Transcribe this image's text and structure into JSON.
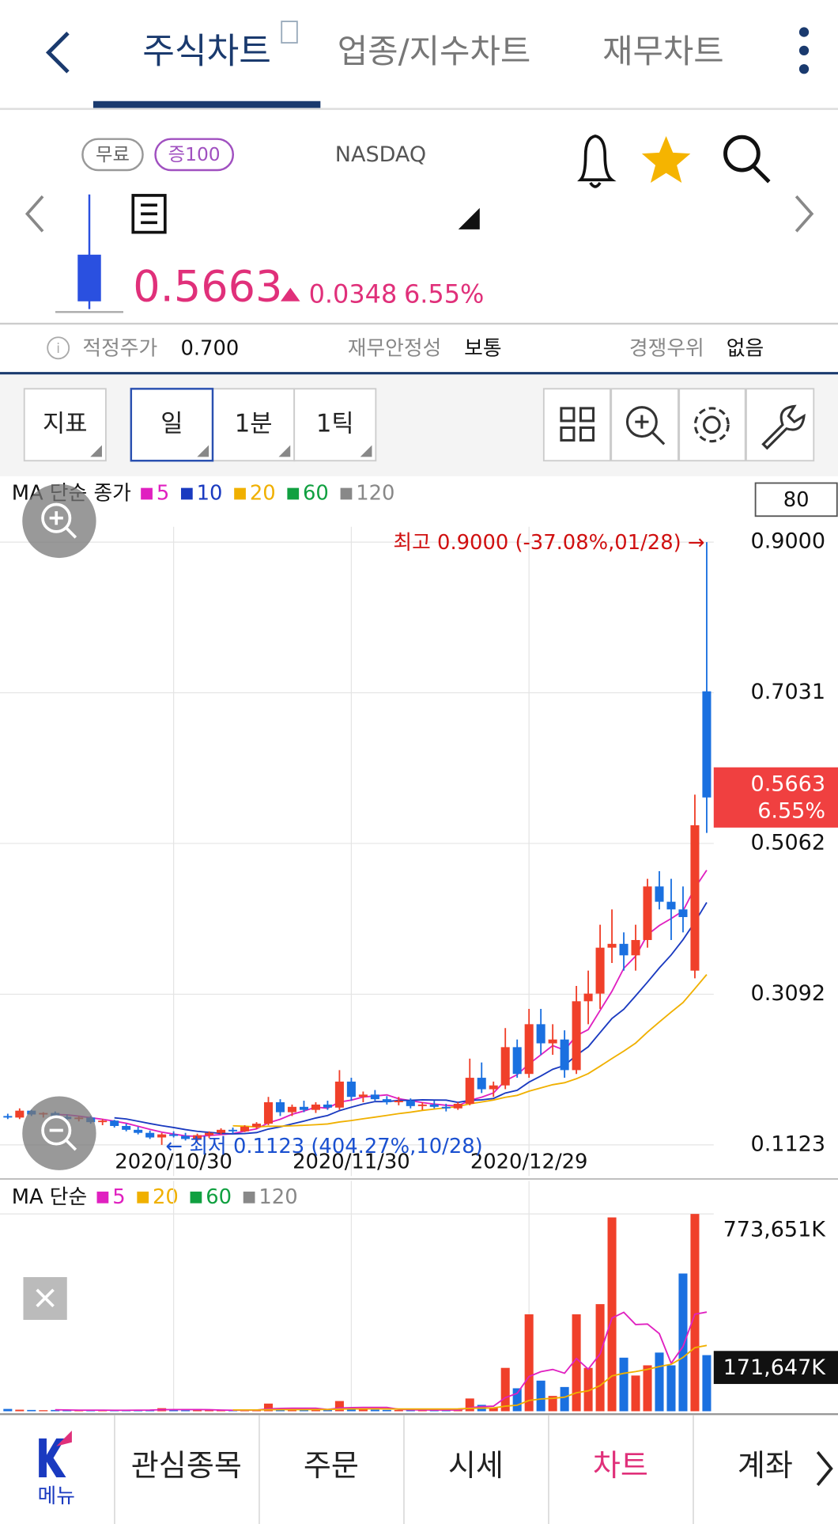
{
  "header": {
    "tabs": [
      "주식차트",
      "업종/지수차트",
      "재무차트"
    ]
  },
  "stock": {
    "badges": [
      "무료",
      "증100"
    ],
    "market": "NASDAQ",
    "price": "0.5663",
    "change": "0.0348",
    "change_pct": "6.55%"
  },
  "info": [
    {
      "label": "적정주가",
      "value": "0.700"
    },
    {
      "label": "재무안정성",
      "value": "보통"
    },
    {
      "label": "경쟁우위",
      "value": "없음"
    }
  ],
  "toolbar": [
    "지표",
    "일",
    "1분",
    "1틱"
  ],
  "chart_data": [
    {
      "type": "candlestick",
      "legend_title": "MA 단순 종가",
      "zoom_box": "80",
      "ma": [
        {
          "name": "5",
          "color": "#e020c0",
          "period": 5
        },
        {
          "name": "10",
          "color": "#1a3ac0",
          "period": 10
        },
        {
          "name": "20",
          "color": "#f0b000",
          "period": 20
        },
        {
          "name": "60",
          "color": "#10a040"
        },
        {
          "name": "120",
          "color": "#888888"
        }
      ],
      "categories": [
        null,
        null,
        null,
        null,
        null,
        null,
        null,
        null,
        null,
        null,
        null,
        null,
        null,
        null,
        "2020/10/30",
        null,
        null,
        null,
        null,
        null,
        null,
        null,
        null,
        null,
        null,
        null,
        null,
        null,
        null,
        "2020/11/30",
        null,
        null,
        null,
        null,
        null,
        null,
        null,
        null,
        null,
        null,
        null,
        null,
        null,
        null,
        "2020/12/29",
        null,
        null,
        null,
        null,
        null,
        null,
        null,
        null,
        null,
        null,
        null,
        null,
        null,
        null,
        null
      ],
      "open": [
        0.15,
        0.148,
        0.157,
        0.152,
        0.154,
        0.149,
        0.146,
        0.148,
        0.142,
        0.144,
        0.137,
        0.132,
        0.128,
        0.122,
        0.126,
        0.124,
        0.12,
        0.125,
        0.128,
        0.132,
        0.13,
        0.136,
        0.14,
        0.168,
        0.155,
        0.162,
        0.158,
        0.165,
        0.161,
        0.195,
        0.175,
        0.178,
        0.172,
        0.168,
        0.17,
        0.163,
        0.165,
        0.162,
        0.16,
        0.166,
        0.2,
        0.185,
        0.19,
        0.24,
        0.205,
        0.27,
        0.245,
        0.25,
        0.21,
        0.3,
        0.31,
        0.37,
        0.375,
        0.36,
        0.38,
        0.45,
        0.43,
        0.42,
        0.34,
        0.705
      ],
      "high": [
        0.153,
        0.16,
        0.158,
        0.155,
        0.156,
        0.152,
        0.15,
        0.15,
        0.146,
        0.145,
        0.14,
        0.136,
        0.131,
        0.128,
        0.13,
        0.128,
        0.127,
        0.13,
        0.134,
        0.135,
        0.138,
        0.142,
        0.175,
        0.172,
        0.165,
        0.17,
        0.168,
        0.17,
        0.21,
        0.2,
        0.182,
        0.184,
        0.176,
        0.175,
        0.173,
        0.168,
        0.17,
        0.166,
        0.168,
        0.225,
        0.22,
        0.195,
        0.265,
        0.25,
        0.29,
        0.29,
        0.27,
        0.262,
        0.32,
        0.34,
        0.4,
        0.42,
        0.39,
        0.4,
        0.46,
        0.47,
        0.46,
        0.45,
        0.57,
        0.9
      ],
      "low": [
        0.146,
        0.146,
        0.15,
        0.148,
        0.147,
        0.144,
        0.143,
        0.14,
        0.138,
        0.135,
        0.13,
        0.126,
        0.12,
        0.1123,
        0.122,
        0.118,
        0.117,
        0.121,
        0.126,
        0.127,
        0.129,
        0.133,
        0.138,
        0.15,
        0.15,
        0.155,
        0.154,
        0.158,
        0.158,
        0.17,
        0.168,
        0.17,
        0.165,
        0.164,
        0.16,
        0.158,
        0.16,
        0.156,
        0.158,
        0.164,
        0.18,
        0.175,
        0.185,
        0.2,
        0.2,
        0.23,
        0.23,
        0.2,
        0.205,
        0.27,
        0.29,
        0.35,
        0.34,
        0.34,
        0.37,
        0.42,
        0.38,
        0.39,
        0.33,
        0.52
      ],
      "close": [
        0.148,
        0.157,
        0.152,
        0.154,
        0.149,
        0.146,
        0.148,
        0.142,
        0.144,
        0.137,
        0.132,
        0.128,
        0.122,
        0.126,
        0.124,
        0.12,
        0.125,
        0.128,
        0.132,
        0.13,
        0.136,
        0.14,
        0.168,
        0.155,
        0.162,
        0.158,
        0.165,
        0.161,
        0.195,
        0.175,
        0.178,
        0.172,
        0.168,
        0.17,
        0.163,
        0.165,
        0.162,
        0.16,
        0.166,
        0.2,
        0.185,
        0.19,
        0.24,
        0.205,
        0.27,
        0.245,
        0.25,
        0.21,
        0.3,
        0.31,
        0.37,
        0.375,
        0.36,
        0.38,
        0.45,
        0.43,
        0.42,
        0.41,
        0.53,
        0.5663
      ],
      "up_color": "#f0402a",
      "down_color": "#1a70e0",
      "ylim": [
        0.09,
        0.92
      ],
      "yticks": [
        {
          "value": 0.9,
          "label": "0.9000"
        },
        {
          "value": 0.7031,
          "label": "0.7031"
        },
        {
          "value": 0.5062,
          "label": "0.5062"
        },
        {
          "value": 0.3092,
          "label": "0.3092"
        },
        {
          "value": 0.1123,
          "label": "0.1123"
        }
      ],
      "grid": true,
      "last_price": 0.5663,
      "last_change": "6.55%",
      "annotations": [
        {
          "text": "최고 0.9000 (-37.08%,01/28) →",
          "color": "#d01010"
        },
        {
          "text": "← 최저 0.1123 (404.27%,10/28)",
          "color": "#1a50d0"
        }
      ]
    },
    {
      "type": "bar",
      "legend_title": "MA 단순",
      "ma": [
        {
          "name": "5",
          "color": "#e020c0",
          "period": 5
        },
        {
          "name": "20",
          "color": "#f0b000",
          "period": 20
        },
        {
          "name": "60",
          "color": "#10a040"
        },
        {
          "name": "120",
          "color": "#888888"
        }
      ],
      "values": [
        9000,
        6000,
        5000,
        4000,
        5000,
        4000,
        3000,
        5000,
        4000,
        3000,
        4000,
        5000,
        6000,
        12000,
        5000,
        4000,
        5000,
        4000,
        4000,
        3000,
        5000,
        6000,
        30000,
        12000,
        6000,
        5000,
        6000,
        5000,
        40000,
        15000,
        8000,
        6000,
        5000,
        5000,
        4000,
        5000,
        4000,
        4000,
        6000,
        50000,
        25000,
        15000,
        170000,
        90000,
        380000,
        120000,
        60000,
        95000,
        380000,
        170000,
        420000,
        760000,
        210000,
        140000,
        180000,
        230000,
        180000,
        540000,
        773651,
        220000
      ],
      "ylim": [
        0,
        773651
      ],
      "yticks": [
        {
          "value": 773651,
          "label": "773,651K"
        }
      ],
      "marker": {
        "value": 171647,
        "label": "171,647K"
      }
    }
  ],
  "nav": [
    "메뉴",
    "관심종목",
    "주문",
    "시세",
    "차트",
    "계좌"
  ]
}
